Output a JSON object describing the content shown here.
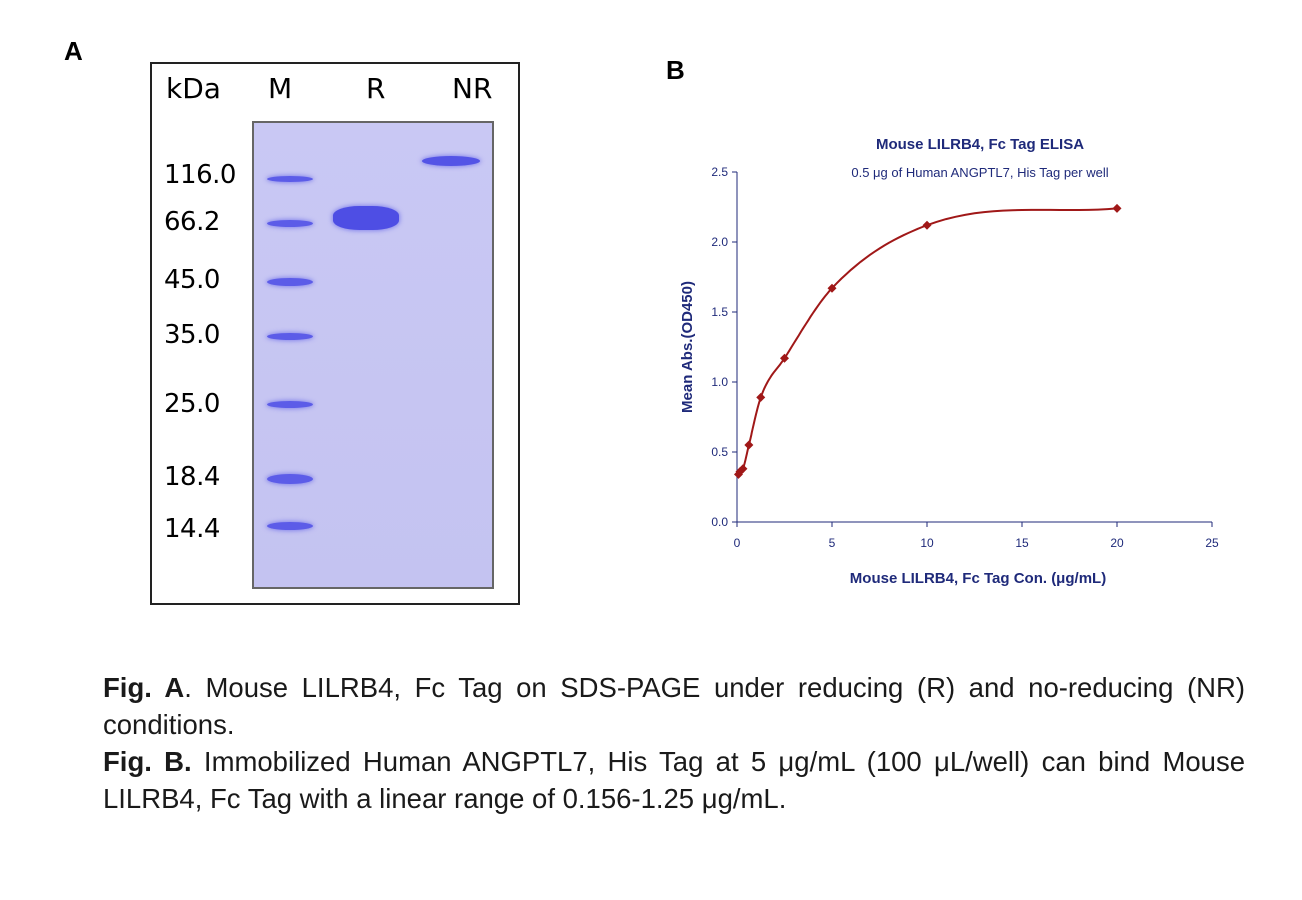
{
  "panel_a": {
    "label": "A",
    "lane_headers": {
      "kda": "kDa",
      "m": "M",
      "r": "R",
      "nr": "NR"
    },
    "markers": [
      "116.0",
      "66.2",
      "45.0",
      "35.0",
      "25.0",
      "18.4",
      "14.4"
    ]
  },
  "panel_b": {
    "label": "B",
    "chart_data": {
      "type": "scatter",
      "title": "Mouse LILRB4, Fc Tag ELISA",
      "subtitle": "0.5 μg of Human ANGPTL7, His Tag per well",
      "xlabel": "Mouse LILRB4, Fc Tag Con. (μg/mL)",
      "ylabel": "Mean Abs.(OD450)",
      "xlim": [
        0,
        25
      ],
      "ylim": [
        0,
        2.5
      ],
      "x_ticks": [
        "0",
        "5",
        "10",
        "15",
        "20",
        "25"
      ],
      "y_ticks": [
        "0.0",
        "0.5",
        "1.0",
        "1.5",
        "2.0",
        "2.5"
      ],
      "x": [
        0.078,
        0.156,
        0.313,
        0.625,
        1.25,
        2.5,
        5,
        10,
        20
      ],
      "y": [
        0.34,
        0.36,
        0.38,
        0.55,
        0.89,
        1.17,
        1.67,
        2.12,
        2.24
      ],
      "fit": "sigmoidal curve",
      "marker_color": "#a01818",
      "line_color": "#a01818",
      "grid": false
    }
  },
  "caption": {
    "a_head": "Fig. A",
    "a_text": ". Mouse LILRB4, Fc Tag on SDS-PAGE under reducing (R) and no-reducing (NR) conditions.",
    "b_head": "Fig. B.",
    "b_text": " Immobilized Human ANGPTL7, His Tag at 5 μg/mL (100 μL/well) can bind Mouse LILRB4, Fc Tag with a linear range of 0.156-1.25 μg/mL."
  }
}
